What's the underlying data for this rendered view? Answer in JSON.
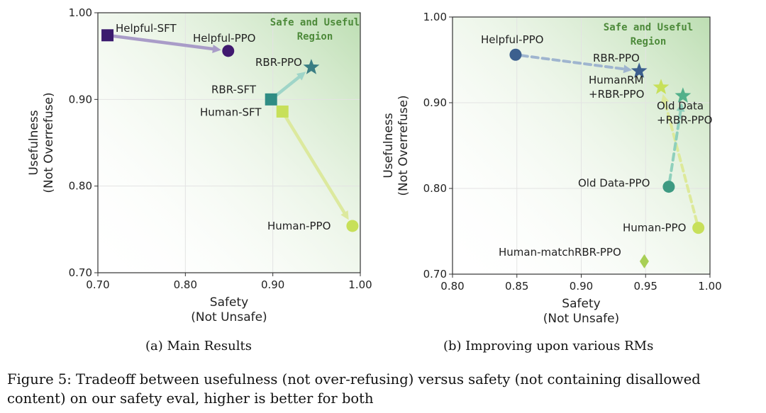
{
  "chart_data": [
    {
      "type": "scatter",
      "subtitle": "(a) Main Results",
      "xlabel": [
        "Safety",
        "(Not Unsafe)"
      ],
      "ylabel": [
        "Usefulness",
        "(Not Overrefuse)"
      ],
      "xlim": [
        0.7,
        1.0
      ],
      "ylim": [
        0.7,
        1.0
      ],
      "xticks": [
        "0.70",
        "0.80",
        "0.90",
        "1.00"
      ],
      "yticks": [
        "0.70",
        "0.80",
        "0.90",
        "1.00"
      ],
      "grid": true,
      "region_label": [
        "Safe and Useful",
        "Region"
      ],
      "points": [
        {
          "label": "Helpful-SFT",
          "x": 0.711,
          "y": 0.974,
          "marker": "square",
          "color": "#3b1a6e"
        },
        {
          "label": "Helpful-PPO",
          "x": 0.849,
          "y": 0.956,
          "marker": "circle",
          "color": "#40196f"
        },
        {
          "label": "RBR-SFT",
          "x": 0.898,
          "y": 0.9,
          "marker": "square",
          "color": "#2f8c84"
        },
        {
          "label": "RBR-PPO",
          "x": 0.944,
          "y": 0.937,
          "marker": "star",
          "color": "#3a7e84"
        },
        {
          "label": "Human-SFT",
          "x": 0.911,
          "y": 0.886,
          "marker": "square",
          "color": "#c7e05a"
        },
        {
          "label": "Human-PPO",
          "x": 0.991,
          "y": 0.754,
          "marker": "circle",
          "color": "#c7e05a"
        }
      ],
      "arrows": [
        {
          "from": "Helpful-SFT",
          "to": "Helpful-PPO",
          "color": "#a99cc8"
        },
        {
          "from": "RBR-SFT",
          "to": "RBR-PPO",
          "color": "#9fd5c8"
        },
        {
          "from": "Human-SFT",
          "to": "Human-PPO",
          "color": "#dce99e"
        }
      ]
    },
    {
      "type": "scatter",
      "subtitle": "(b) Improving upon various RMs",
      "xlabel": [
        "Safety",
        "(Not Unsafe)"
      ],
      "ylabel": [
        "Usefulness",
        "(Not Overrefuse)"
      ],
      "xlim": [
        0.8,
        1.0
      ],
      "ylim": [
        0.7,
        1.0
      ],
      "xticks": [
        "0.80",
        "0.85",
        "0.90",
        "0.95",
        "1.00"
      ],
      "yticks": [
        "0.70",
        "0.80",
        "0.90",
        "1.00"
      ],
      "grid": true,
      "region_label": [
        "Safe and Useful",
        "Region"
      ],
      "points": [
        {
          "label": "Helpful-PPO",
          "x": 0.849,
          "y": 0.956,
          "marker": "circle",
          "color": "#3c5f8e"
        },
        {
          "label": "RBR-PPO",
          "x": 0.945,
          "y": 0.937,
          "marker": "star",
          "color": "#3c5f8e"
        },
        {
          "label": "HumanRM +RBR-PPO",
          "x": 0.962,
          "y": 0.918,
          "marker": "star",
          "color": "#c7e05a"
        },
        {
          "label": "Old Data +RBR-PPO",
          "x": 0.979,
          "y": 0.908,
          "marker": "star",
          "color": "#52b08a"
        },
        {
          "label": "Old Data-PPO",
          "x": 0.968,
          "y": 0.802,
          "marker": "circle",
          "color": "#3e9a82"
        },
        {
          "label": "Human-PPO",
          "x": 0.991,
          "y": 0.754,
          "marker": "circle",
          "color": "#c7e05a"
        },
        {
          "label": "Human-matchRBR-PPO",
          "x": 0.949,
          "y": 0.715,
          "marker": "diamond",
          "color": "#a8cf55"
        }
      ],
      "arrows": [
        {
          "from": "Helpful-PPO",
          "to": "RBR-PPO",
          "color": "#9fb5cf",
          "dashed": true
        },
        {
          "from": "Human-PPO",
          "to": "HumanRM +RBR-PPO",
          "color": "#dde99a",
          "dashed": true
        },
        {
          "from": "Old Data-PPO",
          "to": "Old Data +RBR-PPO",
          "color": "#8fd0bc",
          "dashed": true
        }
      ]
    }
  ],
  "figure_caption": "Figure 5: Tradeoff between usefulness (not over-refusing) versus safety (not containing disallowed content) on our safety eval, higher is better for both"
}
